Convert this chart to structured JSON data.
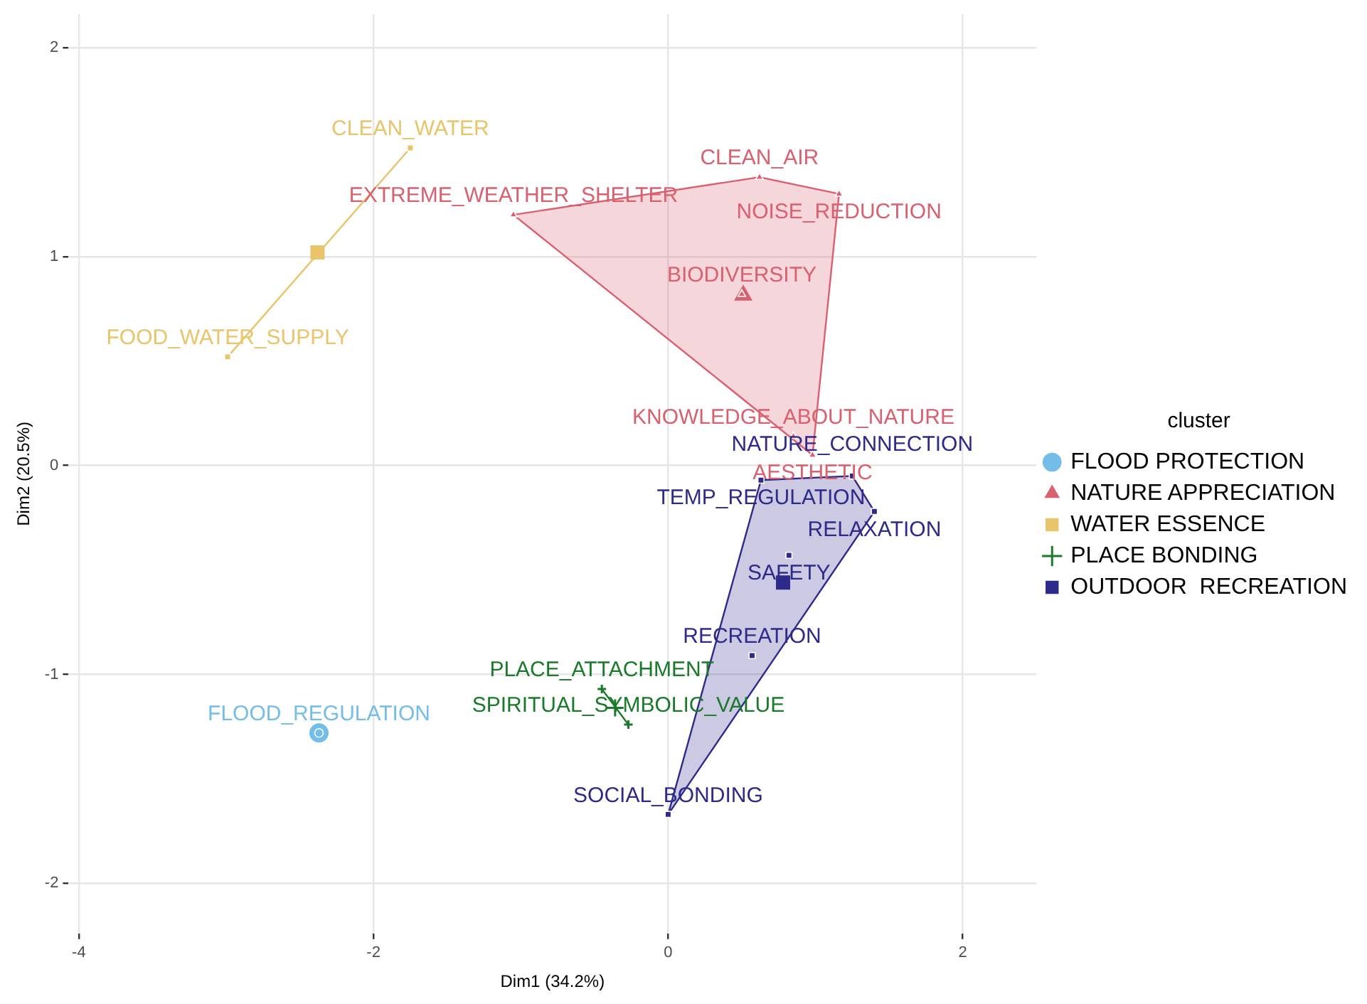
{
  "chart_data": {
    "type": "scatter",
    "xlabel": "Dim1 (34.2%)",
    "ylabel": "Dim2 (20.5%)",
    "legend_title": "cluster",
    "legend": "right",
    "grid": true,
    "xlim": [
      -4.07,
      2.5
    ],
    "xticks": [
      -4,
      -2,
      0,
      2
    ],
    "ylim": [
      -2.24,
      2.16
    ],
    "yticks": [
      -2,
      -1,
      0,
      1,
      2
    ],
    "series": [
      {
        "name": "FLOOD PROTECTION",
        "color": "#74bde9",
        "marker": "circle",
        "x": [
          -2.37
        ],
        "values": [
          -1.28
        ],
        "value_labels": [
          "FLOOD_REGULATION"
        ]
      },
      {
        "name": "NATURE APPRECIATION",
        "color": "#d9606f",
        "marker": "triangle",
        "x": [
          -1.05,
          0.62,
          1.16,
          0.5,
          0.85,
          0.98
        ],
        "values": [
          1.2,
          1.38,
          1.3,
          0.82,
          0.14,
          0.05
        ],
        "value_labels": [
          "EXTREME_WEATHER_SHELTER",
          "CLEAN_AIR",
          "NOISE_REDUCTION",
          "BIODIVERSITY",
          "KNOWLEDGE_ABOUT_NATURE",
          "AESTHETIC"
        ]
      },
      {
        "name": "WATER ESSENCE",
        "color": "#e8c46a",
        "marker": "square",
        "x": [
          -1.75,
          -2.99
        ],
        "values": [
          1.52,
          0.52
        ],
        "value_labels": [
          "CLEAN_WATER",
          "FOOD_WATER_SUPPLY"
        ]
      },
      {
        "name": "PLACE BONDING",
        "color": "#1a7a2a",
        "marker": "cross",
        "x": [
          -0.45,
          -0.27
        ],
        "values": [
          -1.07,
          -1.24
        ],
        "value_labels": [
          "PLACE_ATTACHMENT",
          "SPIRITUAL_SYMBOLIC_VALUE"
        ]
      },
      {
        "name": "OUTDOOR  RECREATION",
        "color": "#2e2a8a",
        "marker": "square",
        "x": [
          0.63,
          1.25,
          1.4,
          0.82,
          0.57,
          0
        ],
        "values": [
          -0.07,
          -0.05,
          -0.22,
          -0.43,
          -0.91,
          -1.67
        ],
        "value_labels": [
          "TEMP_REGULATION",
          "NATURE_CONNECTION",
          "RELAXATION",
          "SAFETY",
          "RECREATION",
          "SOCIAL_BONDING"
        ]
      },
      {
        "color": "#74bde9",
        "marker": "circle",
        "x": [
          -2.37
        ],
        "values": [
          -1.28
        ]
      },
      {
        "color": "#d9606f",
        "marker": "triangle",
        "x": [
          0.51
        ],
        "values": [
          0.815
        ]
      },
      {
        "color": "#e8c46a",
        "marker": "square",
        "x": [
          -2.38
        ],
        "values": [
          1.02
        ]
      },
      {
        "color": "#1a7a2a",
        "marker": "cross",
        "x": [
          -0.36
        ],
        "values": [
          -1.16
        ]
      },
      {
        "color": "#2e2a8a",
        "marker": "square",
        "x": [
          0.78
        ],
        "values": [
          -0.56
        ]
      },
      {
        "type": "area",
        "color": "#d9606f",
        "x": [
          -1.05,
          0.62,
          1.16,
          0.98
        ],
        "values": [
          1.2,
          1.38,
          1.3,
          0.05
        ]
      },
      {
        "type": "area",
        "color": "#2e2a8a",
        "x": [
          0.63,
          1.25,
          1.4,
          0
        ],
        "values": [
          -0.07,
          -0.05,
          -0.22,
          -1.67
        ]
      },
      {
        "type": "line",
        "color": "#e8c46a",
        "x": [
          -1.75,
          -2.99
        ],
        "values": [
          1.52,
          0.52
        ]
      },
      {
        "type": "line",
        "color": "#1a7a2a",
        "x": [
          -0.45,
          -0.27
        ],
        "values": [
          -1.07,
          -1.24
        ]
      }
    ]
  }
}
